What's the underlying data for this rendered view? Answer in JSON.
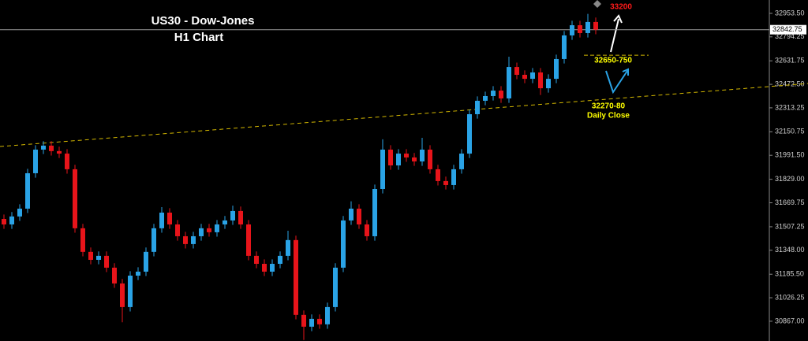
{
  "chart_data": {
    "type": "candlestick",
    "title": "US30 - Dow-Jones",
    "subtitle": "H1 Chart",
    "up_color": "#2aa3e6",
    "down_color": "#e8141a",
    "open": [
      31560,
      31523,
      31577,
      31630,
      31870,
      32030,
      32057,
      32020,
      32003,
      31897,
      31497,
      31337,
      31283,
      31310,
      31230,
      31123,
      30963,
      31176,
      31203,
      31337,
      31497,
      31603,
      31523,
      31443,
      31390,
      31443,
      31497,
      31470,
      31523,
      31550,
      31614,
      31523,
      31310,
      31256,
      31203,
      31256,
      31310,
      31417,
      30910,
      30830,
      30883,
      30846,
      30963,
      31230,
      31550,
      31630,
      31523,
      31443,
      31763,
      32030,
      31923,
      32003,
      31977,
      31950,
      32030,
      31897,
      31817,
      31790,
      31897,
      32003,
      32270,
      32361,
      32393,
      32430,
      32377,
      32590,
      32537,
      32510,
      32553,
      32446,
      32510,
      32644,
      32804,
      32873,
      32820,
      32895
    ],
    "high": [
      31590,
      31607,
      31660,
      31900,
      32060,
      32087,
      32087,
      32050,
      32033,
      31927,
      31527,
      31367,
      31340,
      31340,
      31260,
      31153,
      31206,
      31233,
      31367,
      31527,
      31640,
      31633,
      31553,
      31473,
      31473,
      31527,
      31527,
      31553,
      31580,
      31650,
      31644,
      31553,
      31340,
      31286,
      31286,
      31340,
      31480,
      31447,
      30940,
      30913,
      30913,
      30993,
      31260,
      31580,
      31680,
      31660,
      31553,
      31793,
      32100,
      32060,
      32033,
      32033,
      32007,
      32110,
      32060,
      31927,
      31847,
      31927,
      32033,
      32300,
      32391,
      32423,
      32460,
      32460,
      32660,
      32620,
      32567,
      32583,
      32583,
      32540,
      32674,
      32834,
      32903,
      32903,
      32950,
      32925
    ],
    "low": [
      31493,
      31493,
      31547,
      31600,
      31840,
      32000,
      31990,
      31973,
      31867,
      31467,
      31307,
      31253,
      31253,
      31200,
      31093,
      30860,
      30933,
      31146,
      31173,
      31307,
      31467,
      31493,
      31413,
      31360,
      31360,
      31413,
      31440,
      31440,
      31493,
      31520,
      31493,
      31280,
      31226,
      31173,
      31173,
      31226,
      31280,
      30880,
      30740,
      30800,
      30816,
      30816,
      30933,
      31200,
      31520,
      31493,
      31413,
      31413,
      31733,
      31893,
      31893,
      31947,
      31920,
      31920,
      31867,
      31787,
      31760,
      31760,
      31867,
      31973,
      32240,
      32331,
      32363,
      32347,
      32347,
      32507,
      32480,
      32480,
      32400,
      32416,
      32480,
      32614,
      32774,
      32790,
      32790,
      32812
    ],
    "close": [
      31523,
      31577,
      31630,
      31870,
      32030,
      32057,
      32020,
      32003,
      31897,
      31497,
      31337,
      31283,
      31310,
      31230,
      31123,
      30963,
      31176,
      31203,
      31337,
      31497,
      31603,
      31523,
      31443,
      31390,
      31443,
      31497,
      31470,
      31523,
      31550,
      31614,
      31523,
      31310,
      31256,
      31203,
      31256,
      31310,
      31417,
      30910,
      30830,
      30883,
      30846,
      30963,
      31230,
      31550,
      31630,
      31523,
      31443,
      31763,
      32030,
      31923,
      32003,
      31977,
      31950,
      32030,
      31897,
      31817,
      31790,
      31897,
      32003,
      32270,
      32361,
      32393,
      32430,
      32377,
      32590,
      32537,
      32510,
      32553,
      32446,
      32510,
      32644,
      32804,
      32873,
      32820,
      32895,
      32842.75
    ],
    "ylim": [
      30733,
      33044
    ],
    "yticks": [
      {
        "value": 32953.5,
        "label": "32953.50"
      },
      {
        "value": 32794.25,
        "label": "32794.25"
      },
      {
        "value": 32631.75,
        "label": "32631.75"
      },
      {
        "value": 32472.5,
        "label": "32472.50"
      },
      {
        "value": 32313.25,
        "label": "32313.25"
      },
      {
        "value": 32150.75,
        "label": "32150.75"
      },
      {
        "value": 31991.5,
        "label": "31991.50"
      },
      {
        "value": 31829,
        "label": "31829.00"
      },
      {
        "value": 31669.75,
        "label": "31669.75"
      },
      {
        "value": 31507.25,
        "label": "31507.25"
      },
      {
        "value": 31348,
        "label": "31348.00"
      },
      {
        "value": 31185.5,
        "label": "31185.50"
      },
      {
        "value": 31026.25,
        "label": "31026.25"
      },
      {
        "value": 30867,
        "label": "30867.00"
      }
    ],
    "last_price": 32842.75,
    "trendline": [
      32051,
      32478
    ],
    "zone_line": 32670,
    "line_color": "#d4b800",
    "annotations": [
      {
        "text": "33200",
        "color": "#ff1a1a"
      },
      {
        "text": "32650-750",
        "color": "#ffff00"
      },
      {
        "text": "32270-80",
        "color": "#ffff00"
      },
      {
        "text": "Daily Close",
        "color": "#ffff00"
      }
    ]
  }
}
